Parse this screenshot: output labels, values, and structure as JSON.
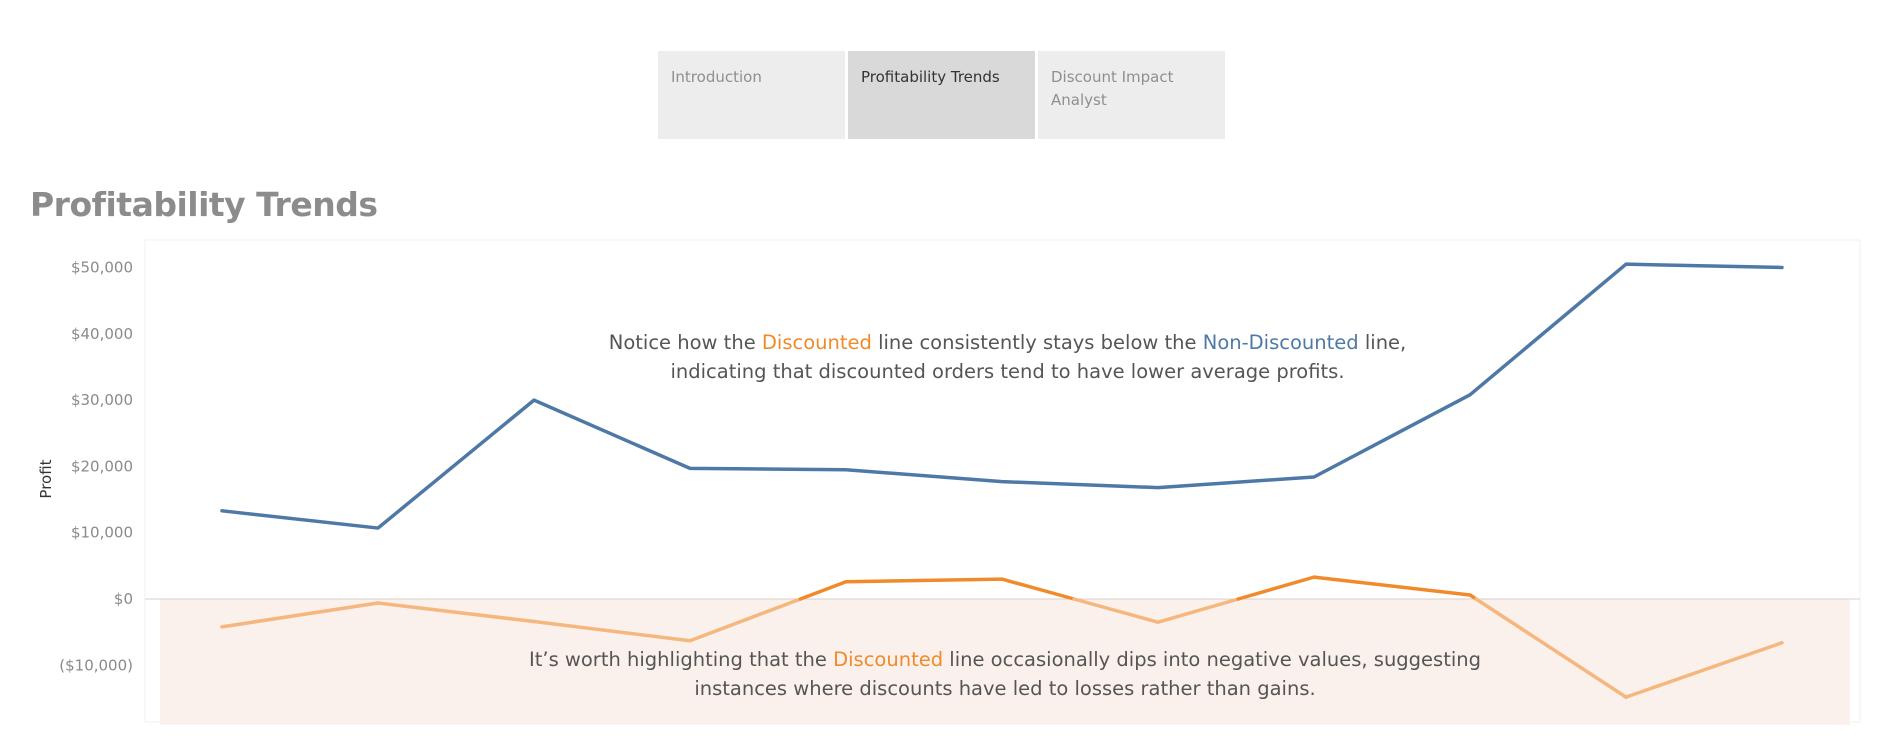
{
  "tabs": [
    {
      "label": "Introduction",
      "active": false
    },
    {
      "label": "Profitability Trends",
      "active": true
    },
    {
      "label": "Discount Impact Analyst",
      "active": false
    }
  ],
  "page_title": "Profitability Trends",
  "annotations": {
    "top": {
      "p1": "Notice how the ",
      "h1": "Discounted",
      "p2": " line consistently stays below the ",
      "h2": "Non-Discounted",
      "p3": " line,",
      "line2": "indicating that discounted orders tend to have lower average profits."
    },
    "bottom": {
      "p1": "It’s worth highlighting that the ",
      "h1": "Discounted",
      "p2": " line occasionally dips into negative values, suggesting",
      "line2": "instances where discounts have led to losses rather than gains."
    }
  },
  "colors": {
    "non_discounted": "#4e79a7",
    "discounted": "#f08a2b",
    "discounted_faded": "#f5b77e",
    "negative_band": "#fbf1ec",
    "zero_line": "#d8cfc9"
  },
  "chart_data": {
    "type": "line",
    "ylabel": "Profit",
    "ylim": [
      -18000,
      50500
    ],
    "yticks": [
      50000,
      40000,
      30000,
      20000,
      10000,
      0,
      -10000
    ],
    "ytick_labels": [
      "$50,000",
      "$40,000",
      "$30,000",
      "$20,000",
      "$10,000",
      "$0",
      "($10,000)"
    ],
    "grid": false,
    "negative_region_shaded": true,
    "x_count": 11,
    "series": [
      {
        "key": "non_discounted",
        "values": [
          13300,
          10700,
          30000,
          19700,
          19500,
          17700,
          16800,
          18400,
          30800,
          50500,
          50000
        ]
      },
      {
        "key": "discounted",
        "values": [
          -4200,
          -600,
          -3400,
          -6300,
          2600,
          3000,
          -3500,
          3300,
          600,
          -14800,
          -6600
        ]
      }
    ]
  }
}
